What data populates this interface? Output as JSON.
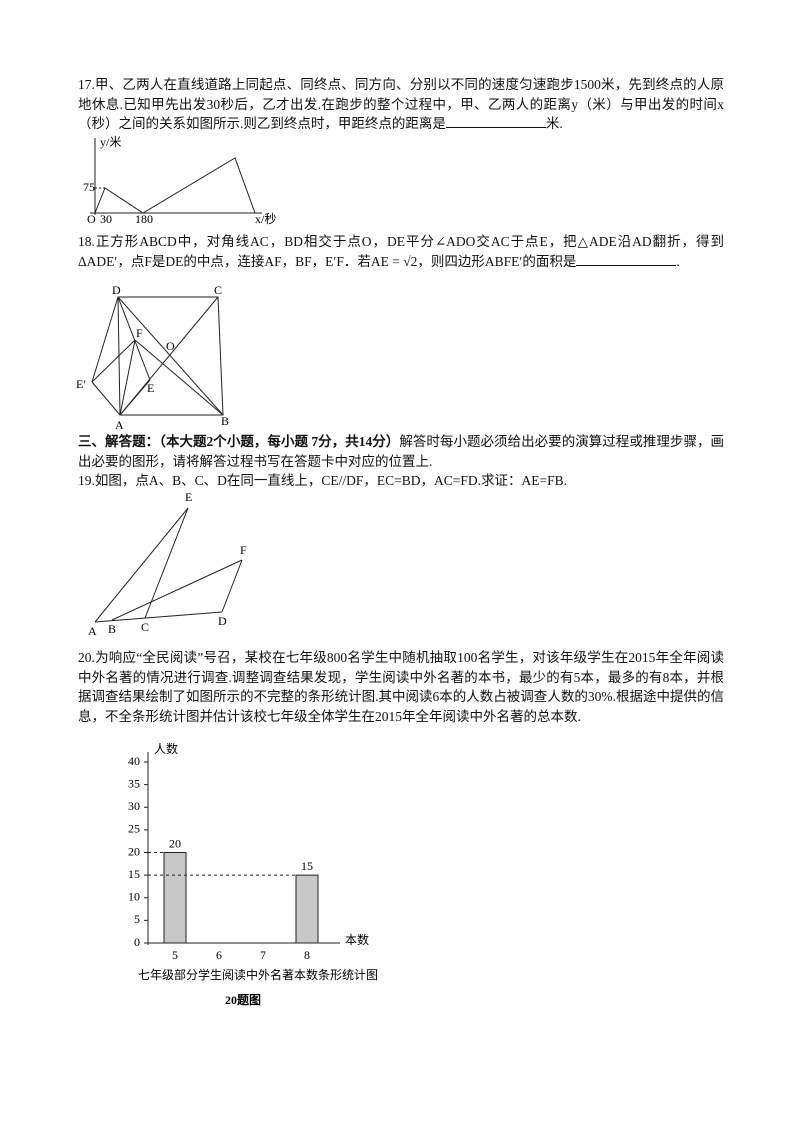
{
  "q17": {
    "text": "17.甲、乙两人在直线道路上同起点、同终点、同方向、分别以不同的速度匀速跑步1500米，先到终点的人原地休息.已知甲先出发30秒后，乙才出发.在跑步的整个过程中，甲、乙两人的距离y（米）与甲出发的时间x（秒）之间的关系如图所示.则乙到终点时，甲距终点的距离是",
    "tail": "米.",
    "graph": {
      "y_label": "y/米",
      "x_label": "x/秒",
      "origin": "O",
      "y_mark": "75",
      "x_marks": [
        "30",
        "180"
      ]
    }
  },
  "q18": {
    "text": "18.正方形ABCD中，对角线AC，BD相交于点O，DE平分∠ADO交AC于点E，把△ADE沿AD翻折，得到ΔADE′，点F是DE的中点，连接AF，BF，E′F．若AE = √2，则四边形ABFE′的面积是",
    "tail": ".",
    "figure_labels": [
      "D",
      "C",
      "F",
      "O",
      "E′",
      "E",
      "A",
      "B"
    ]
  },
  "section": {
    "title": "三、解答题：（本大题2个小题，每小题 7分，共14分）",
    "text": "解答时每小题必须给出必要的演算过程或推理步骤，画出必要的图形，请将解答过程书写在答题卡中对应的位置上."
  },
  "q19": {
    "text": "19.如图，点A、B、C、D在同一直线上，CE//DF，EC=BD，AC=FD.求证：AE=FB.",
    "figure_labels": [
      "E",
      "F",
      "A",
      "B",
      "C",
      "D"
    ]
  },
  "q20": {
    "text": "20.为响应“全民阅读”号召，某校在七年级800名学生中随机抽取100名学生，对该年级学生在2015年全年阅读中外名著的情况进行调查.调整调查结果发现，学生阅读中外名著的本书，最少的有5本，最多的有8本，并根据调查结果绘制了如图所示的不完整的条形统计图.其中阅读6本的人数占被调查人数的30%.根据途中提供的信息，不全条形统计图并估计该校七年级全体学生在2015年全年阅读中外名著的总本数.",
    "chart": {
      "type": "bar",
      "y_label": "人数",
      "x_label": "本数",
      "categories": [
        "5",
        "6",
        "7",
        "8"
      ],
      "values": [
        20,
        null,
        null,
        15
      ],
      "ylim": [
        0,
        40
      ],
      "yticks": [
        0,
        5,
        10,
        15,
        20,
        25,
        30,
        35,
        40
      ],
      "color": "#c8c8c8",
      "caption": "七年级部分学生阅读中外名著本数条形统计图",
      "figure_caption": "20题图"
    }
  }
}
